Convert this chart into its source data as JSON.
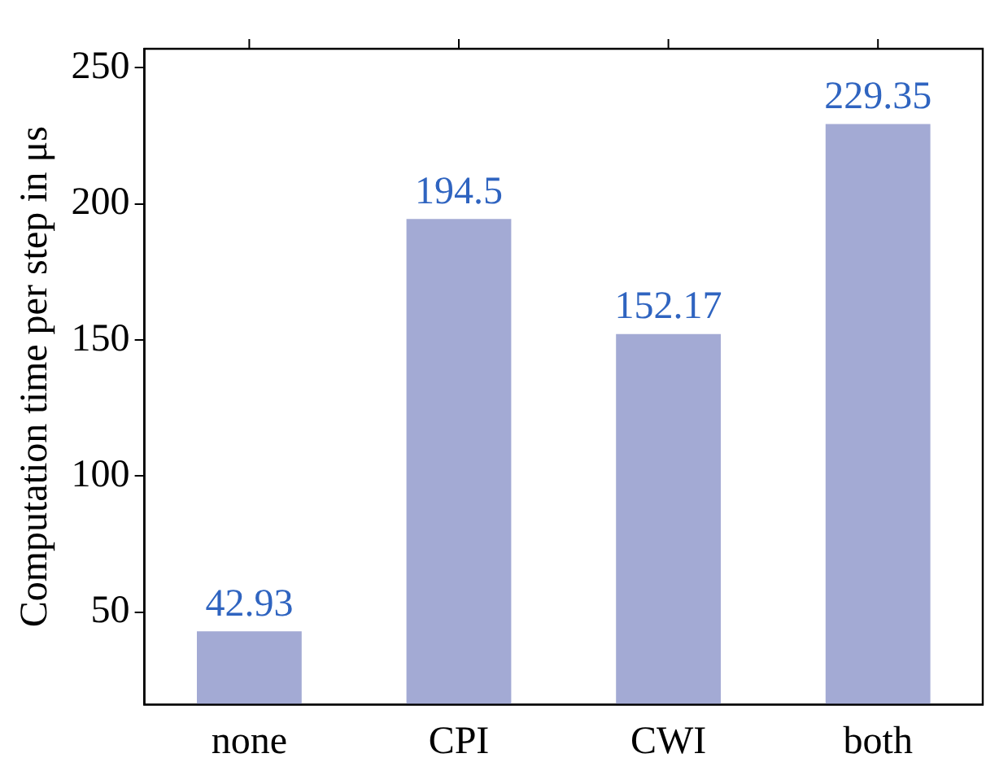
{
  "chart_data": {
    "type": "bar",
    "ylabel": "Computation time per step in μs",
    "categories": [
      "none",
      "CPI",
      "CWI",
      "both"
    ],
    "values": [
      42.93,
      194.5,
      152.17,
      229.35
    ],
    "color": "#a3aad4",
    "ylim": [
      16,
      257
    ],
    "yticks": [
      50,
      100,
      150,
      200,
      250
    ],
    "grid": false,
    "legend": false,
    "data_labels": true
  }
}
